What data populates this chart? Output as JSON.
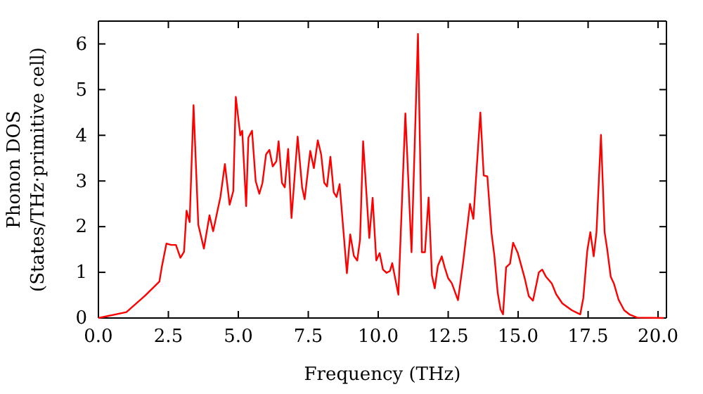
{
  "chart_data": {
    "type": "line",
    "xlabel": "Frequency (THz)",
    "ylabel": "Phonon DOS\n(States/THz·primitive cell)",
    "x": [
      0,
      1.0,
      1.67,
      2.18,
      2.26,
      2.43,
      2.6,
      2.77,
      2.93,
      3.06,
      3.15,
      3.26,
      3.4,
      3.57,
      3.77,
      3.97,
      4.1,
      4.36,
      4.52,
      4.69,
      4.82,
      4.91,
      5.07,
      5.14,
      5.28,
      5.36,
      5.49,
      5.62,
      5.75,
      5.86,
      5.99,
      6.11,
      6.23,
      6.36,
      6.44,
      6.56,
      6.66,
      6.78,
      6.9,
      7.12,
      7.28,
      7.37,
      7.57,
      7.7,
      7.84,
      7.96,
      8.07,
      8.17,
      8.29,
      8.41,
      8.51,
      8.62,
      8.88,
      9.0,
      9.13,
      9.25,
      9.35,
      9.46,
      9.68,
      9.8,
      9.93,
      10.05,
      10.17,
      10.3,
      10.42,
      10.5,
      10.72,
      10.97,
      11.19,
      11.42,
      11.56,
      11.67,
      11.8,
      11.92,
      12.02,
      12.13,
      12.27,
      12.38,
      12.5,
      12.63,
      12.85,
      13.03,
      13.28,
      13.4,
      13.65,
      13.77,
      13.9,
      14.05,
      14.15,
      14.27,
      14.37,
      14.46,
      14.57,
      14.71,
      14.82,
      14.99,
      15.24,
      15.38,
      15.53,
      15.66,
      15.74,
      15.86,
      15.99,
      16.2,
      16.36,
      16.58,
      16.92,
      17.22,
      17.33,
      17.47,
      17.58,
      17.7,
      17.8,
      17.96,
      18.09,
      18.18,
      18.31,
      18.42,
      18.59,
      18.79,
      19.0,
      19.25,
      20.2
    ],
    "series": [
      {
        "color": "#ff0000",
        "values": [
          0,
          0.13,
          0.49,
          0.8,
          1.1,
          1.63,
          1.6,
          1.6,
          1.32,
          1.45,
          2.35,
          2.1,
          4.66,
          2.04,
          1.52,
          2.25,
          1.9,
          2.65,
          3.37,
          2.48,
          2.78,
          4.84,
          4.0,
          4.1,
          2.45,
          3.95,
          4.1,
          3.0,
          2.72,
          2.95,
          3.58,
          3.68,
          3.32,
          3.43,
          3.87,
          2.96,
          2.86,
          3.7,
          2.19,
          3.97,
          2.86,
          2.6,
          3.66,
          3.28,
          3.89,
          3.58,
          2.96,
          2.88,
          3.53,
          2.75,
          2.65,
          2.93,
          0.98,
          1.83,
          1.36,
          1.26,
          1.72,
          3.87,
          1.75,
          2.63,
          1.26,
          1.42,
          1.06,
          0.99,
          1.03,
          1.2,
          0.51,
          4.48,
          1.44,
          6.22,
          1.44,
          1.44,
          2.64,
          0.93,
          0.65,
          1.14,
          1.35,
          1.1,
          0.87,
          0.76,
          0.39,
          1.2,
          2.5,
          2.17,
          4.5,
          3.12,
          3.1,
          1.85,
          1.37,
          0.55,
          0.19,
          0.08,
          1.11,
          1.19,
          1.65,
          1.42,
          0.86,
          0.48,
          0.38,
          0.76,
          1.0,
          1.06,
          0.91,
          0.76,
          0.52,
          0.32,
          0.17,
          0.08,
          0.44,
          1.47,
          1.88,
          1.35,
          1.88,
          4.01,
          1.88,
          1.52,
          0.9,
          0.76,
          0.4,
          0.17,
          0.07,
          0.01,
          0
        ]
      }
    ],
    "xlim": [
      0,
      20.3
    ],
    "ylim": [
      0,
      6.5
    ],
    "xticks": [
      {
        "value": 0,
        "label": "0.0"
      },
      {
        "value": 2.5,
        "label": "2.5"
      },
      {
        "value": 5,
        "label": "5.0"
      },
      {
        "value": 7.5,
        "label": "7.5"
      },
      {
        "value": 10,
        "label": "10.0"
      },
      {
        "value": 12.5,
        "label": "12.5"
      },
      {
        "value": 15,
        "label": "15.0"
      },
      {
        "value": 17.5,
        "label": "17.5"
      },
      {
        "value": 20,
        "label": "20.0"
      }
    ],
    "yticks": [
      0,
      1,
      2,
      3,
      4,
      5,
      6
    ],
    "grid": false,
    "marker": "none",
    "line_style": "solid"
  }
}
